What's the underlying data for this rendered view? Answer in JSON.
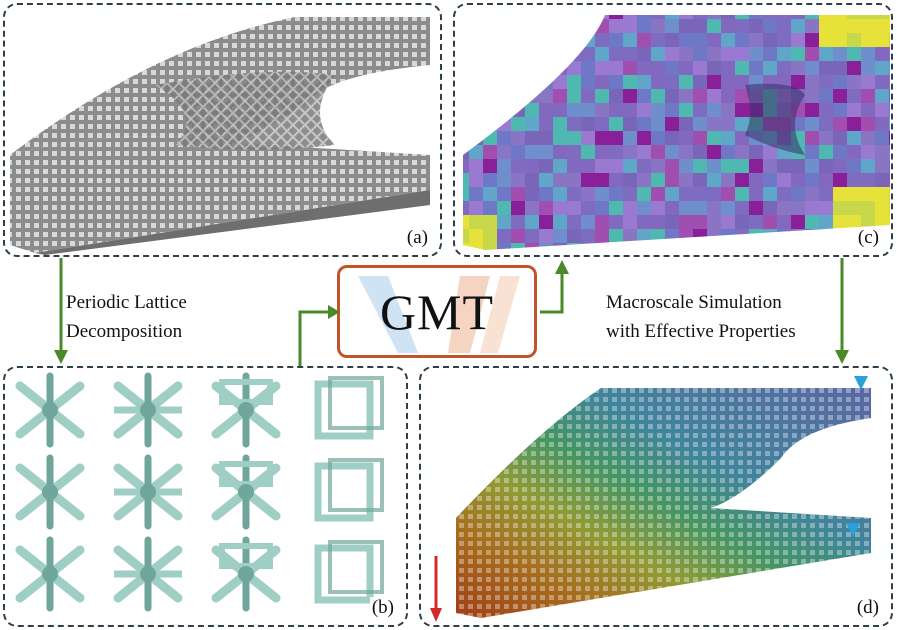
{
  "panels": {
    "a": {
      "label": "(a)"
    },
    "b": {
      "label": "(b)"
    },
    "c": {
      "label": "(c)"
    },
    "d": {
      "label": "(d)"
    }
  },
  "captions": {
    "left": [
      "Periodic Lattice",
      "Decomposition"
    ],
    "right": [
      "Macroscale Simulation",
      "with Effective Properties"
    ]
  },
  "center": {
    "title": "GMT"
  },
  "colors": {
    "border": "#2d3f4a",
    "arrow": "#4a8a2a",
    "gmt_border": "#c0552a",
    "lattice_gray": "#9a9a9a",
    "unit_cell": "#9fcfc4",
    "force_arrow": "#d62828",
    "support": "#2aa0d8"
  }
}
